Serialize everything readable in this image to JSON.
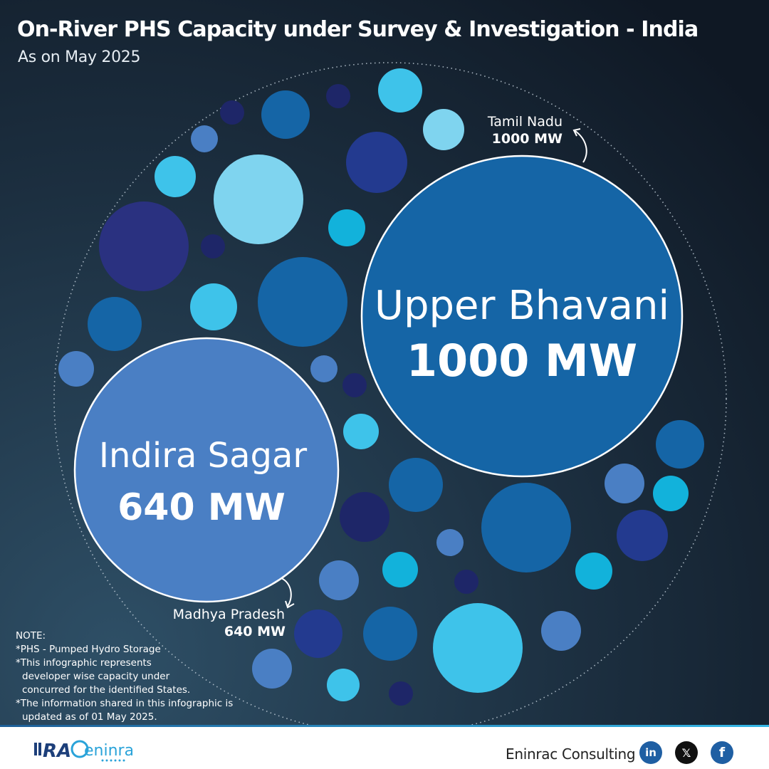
{
  "header": {
    "title": "On-River PHS Capacity under Survey & Investigation - India",
    "subtitle": "As on May 2025"
  },
  "chart_data": {
    "type": "bubble",
    "unit": "MW",
    "series": [
      {
        "name": "Upper Bhavani",
        "state": "Tamil Nadu",
        "value": 1000,
        "value_label": "1000 MW",
        "state_value_label": "1000 MW",
        "color": "#1565a6"
      },
      {
        "name": "Indira Sagar",
        "state": "Madhya Pradesh",
        "value": 640,
        "value_label": "640 MW",
        "state_value_label": "640 MW",
        "color": "#4a7fc4"
      }
    ]
  },
  "palette": [
    "#3ec3ea",
    "#7fd4ef",
    "#1565a6",
    "#233a8f",
    "#2a3180",
    "#4a7fc4",
    "#12b2db",
    "#1e2668"
  ],
  "note": {
    "heading": "NOTE:",
    "lines": [
      "*PHS - Pumped Hydro Storage",
      "*This infographic represents",
      "developer wise capacity under",
      "concurred for the identified States.",
      "*The information shared in this infographic is",
      "updated as of 01 May 2025."
    ]
  },
  "footer": {
    "logo_text": "RAC eninrac",
    "brand": "Eninrac Consulting",
    "social": [
      {
        "name": "linkedin",
        "label": "in",
        "color": "#1f5fa3"
      },
      {
        "name": "x",
        "label": "𝕏",
        "color": "#111111"
      },
      {
        "name": "facebook",
        "label": "f",
        "color": "#1f5fa3"
      }
    ]
  }
}
